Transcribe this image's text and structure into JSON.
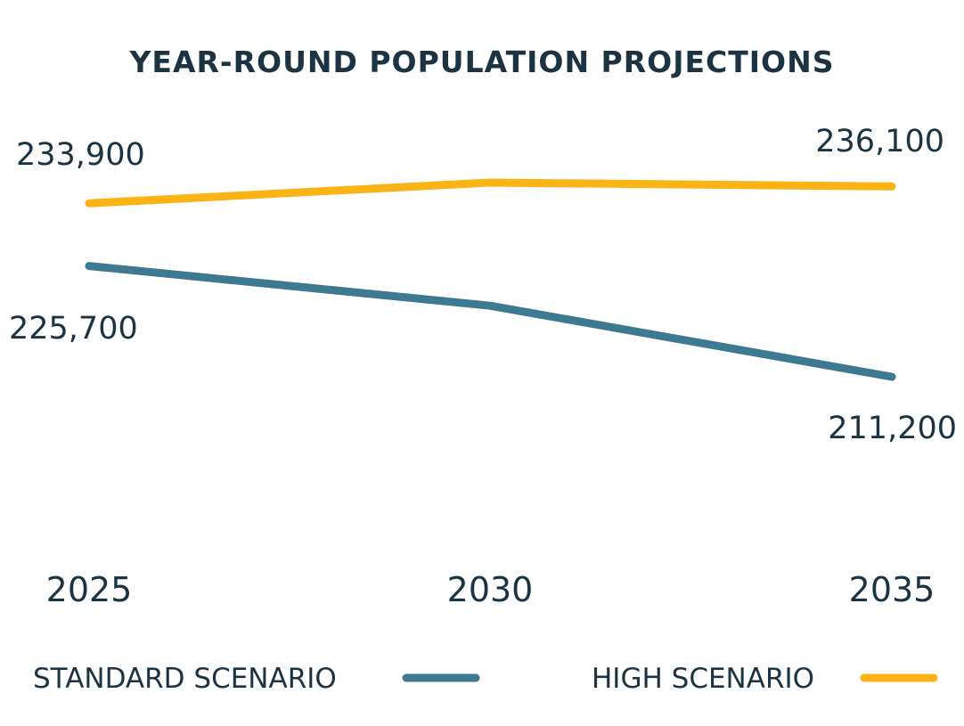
{
  "chart_data": {
    "type": "line",
    "title": "YEAR-ROUND POPULATION PROJECTIONS",
    "xlabel": "",
    "ylabel": "",
    "categories": [
      "2025",
      "2030",
      "2035"
    ],
    "series": [
      {
        "name": "STANDARD SCENARIO",
        "color": "#3d7a91",
        "values": [
          225700,
          220500,
          211200
        ],
        "data_labels": [
          "225,700",
          "",
          "211,200"
        ]
      },
      {
        "name": "HIGH SCENARIO",
        "color": "#fbb316",
        "values": [
          233900,
          236600,
          236100
        ],
        "data_labels": [
          "233,900",
          "",
          "236,100"
        ]
      }
    ],
    "grid": false,
    "legend": "bottom"
  }
}
